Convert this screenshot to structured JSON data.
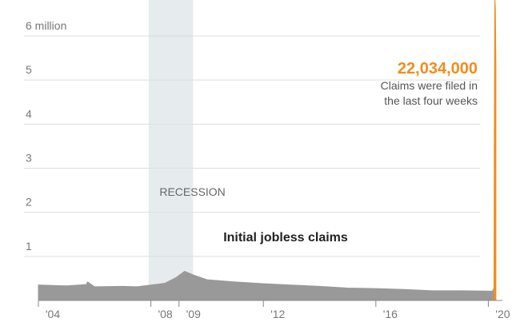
{
  "chart_data": {
    "type": "area",
    "title": "Initial jobless claims",
    "annotation": {
      "headline": "22,034,000",
      "lines": [
        "Claims were filed in",
        "the last four weeks"
      ],
      "color": "#f28c1e"
    },
    "recession": {
      "label": "RECESSION",
      "start": 2007.92,
      "end": 2009.5,
      "color": "#e6ecee"
    },
    "series": [
      {
        "color": "#999999",
        "x": [
          2004.0,
          2004.5,
          2005.0,
          2005.7,
          2005.75,
          2006.0,
          2007.0,
          2007.5,
          2008.0,
          2008.5,
          2008.9,
          2009.2,
          2009.5,
          2010.0,
          2011.0,
          2012.0,
          2013.0,
          2014.0,
          2015.0,
          2016.0,
          2017.0,
          2018.0,
          2019.0,
          2020.15,
          2020.2
        ],
        "values": [
          0.35,
          0.34,
          0.33,
          0.36,
          0.42,
          0.31,
          0.32,
          0.31,
          0.35,
          0.39,
          0.52,
          0.66,
          0.58,
          0.47,
          0.42,
          0.38,
          0.35,
          0.32,
          0.28,
          0.27,
          0.25,
          0.22,
          0.22,
          0.21,
          0.28
        ]
      },
      {
        "color": "#f28c1e",
        "x": [
          2020.2,
          2020.21,
          2020.23,
          2020.25,
          2020.27
        ],
        "values": [
          0.28,
          3.31,
          6.87,
          6.62,
          5.24
        ]
      }
    ],
    "xlim": [
      2004,
      2020.5
    ],
    "xticks": [
      {
        "value": 2004,
        "label": "'04"
      },
      {
        "value": 2008,
        "label": "'08"
      },
      {
        "value": 2009,
        "label": "'09"
      },
      {
        "value": 2012,
        "label": "'12"
      },
      {
        "value": 2016,
        "label": "'16"
      },
      {
        "value": 2020,
        "label": "'20"
      }
    ],
    "ylim": [
      0,
      6.9
    ],
    "yticks": [
      {
        "value": 1,
        "label": "1"
      },
      {
        "value": 2,
        "label": "2"
      },
      {
        "value": 3,
        "label": "3"
      },
      {
        "value": 4,
        "label": "4"
      },
      {
        "value": 5,
        "label": "5"
      },
      {
        "value": 6,
        "label": "6 million"
      }
    ],
    "grid": true
  }
}
